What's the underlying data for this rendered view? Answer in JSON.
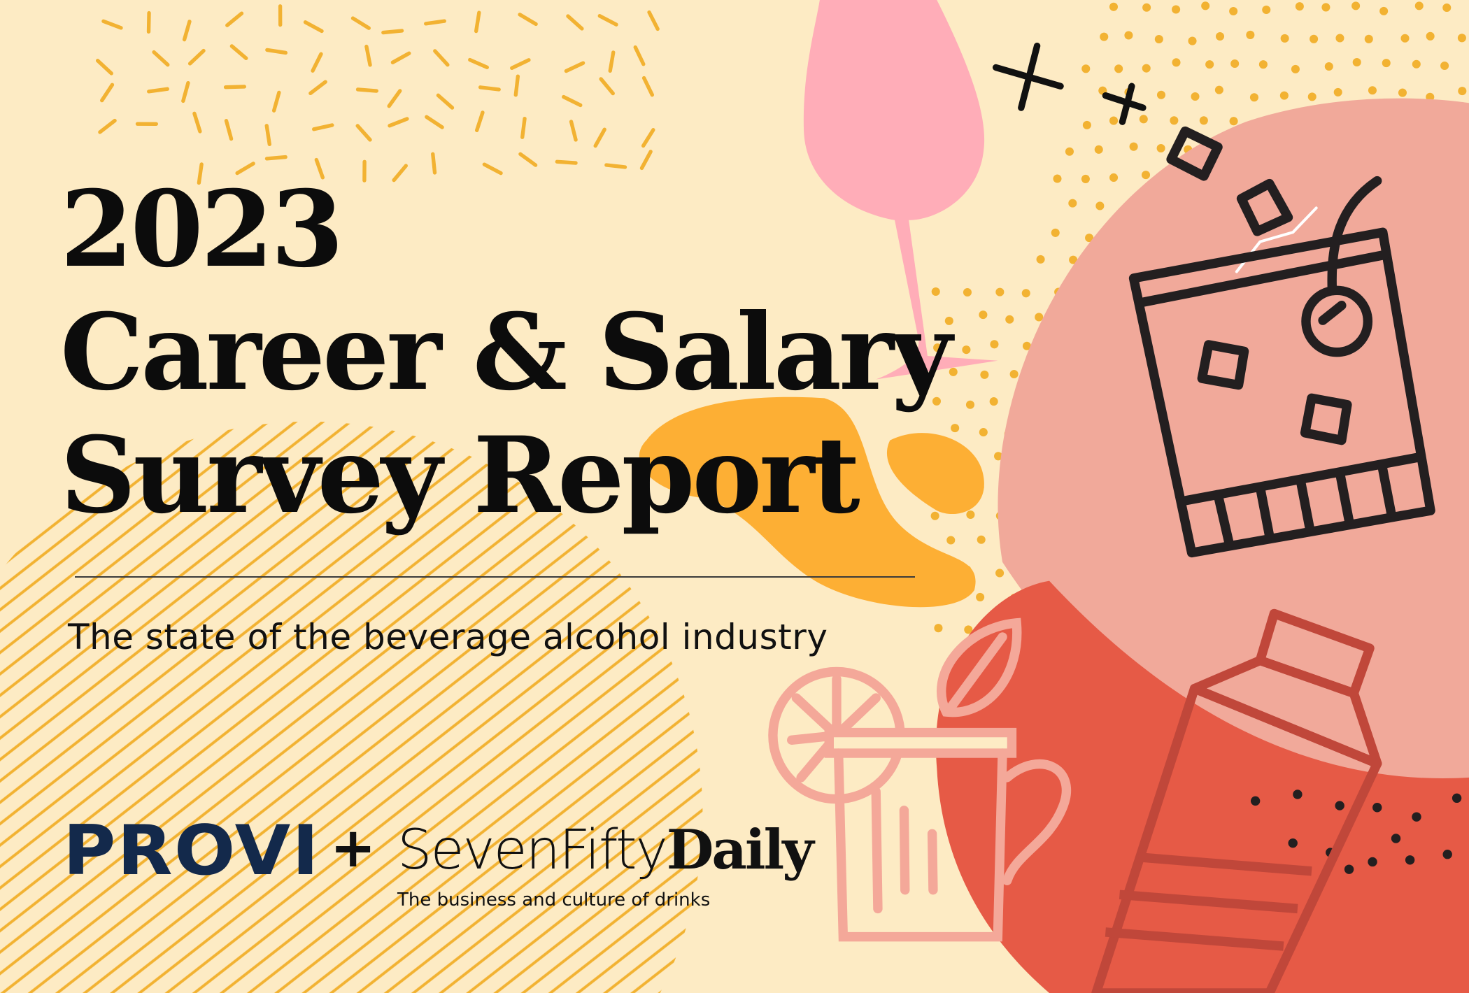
{
  "title": {
    "year": "2023",
    "line1": "Career & Salary",
    "line2": "Survey Report"
  },
  "subtitle": "The state of the beverage alcohol industry",
  "logos": {
    "provi": "PROVI",
    "plus": "+",
    "sevenfifty_part1": "SevenFifty",
    "sevenfifty_part2": "Daily",
    "tagline": "The business and culture of drinks"
  },
  "colors": {
    "background": "#fdebc4",
    "orange_dots": "#f2b232",
    "orange_blob": "#fdaf34",
    "pink_glass": "#ffadb8",
    "salmon_blob": "#f1a99a",
    "red_blob": "#e65a46",
    "provi_navy": "#13294b"
  }
}
